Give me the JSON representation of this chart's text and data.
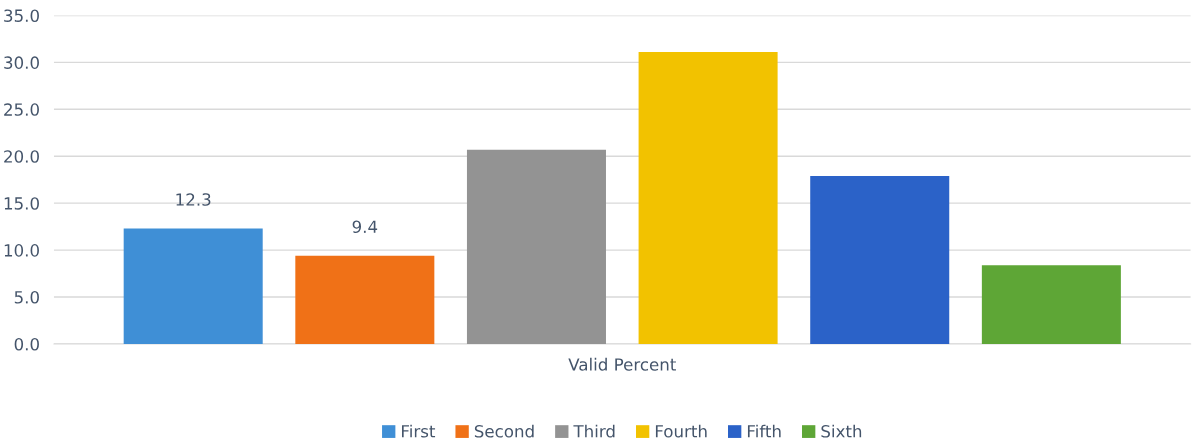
{
  "chart_data": {
    "type": "bar",
    "categories": [
      "Valid Percent"
    ],
    "series": [
      {
        "name": "First",
        "color": "#3f8fd6",
        "values": [
          12.3
        ],
        "value_labels": [
          "12.3"
        ]
      },
      {
        "name": "Second",
        "color": "#f07117",
        "values": [
          9.4
        ],
        "value_labels": [
          "9.4"
        ]
      },
      {
        "name": "Third",
        "color": "#939393",
        "values": [
          20.7
        ],
        "value_labels": [
          null
        ]
      },
      {
        "name": "Fourth",
        "color": "#f2c200",
        "values": [
          31.1
        ],
        "value_labels": [
          null
        ]
      },
      {
        "name": "Fifth",
        "color": "#2b62c8",
        "values": [
          17.9
        ],
        "value_labels": [
          null
        ]
      },
      {
        "name": "Sixth",
        "color": "#5ea636",
        "values": [
          8.4
        ],
        "value_labels": [
          null
        ]
      }
    ],
    "ylim": [
      0,
      35
    ],
    "yticks": [
      {
        "value": 0,
        "label": "0.0"
      },
      {
        "value": 5,
        "label": "5.0"
      },
      {
        "value": 10,
        "label": "10.0"
      },
      {
        "value": 15,
        "label": "15.0"
      },
      {
        "value": 20,
        "label": "20.0"
      },
      {
        "value": 25,
        "label": "25.0"
      },
      {
        "value": 30,
        "label": "30.0"
      },
      {
        "value": 35,
        "label": "35.0"
      }
    ],
    "grid": "y",
    "legend": "bottom"
  }
}
